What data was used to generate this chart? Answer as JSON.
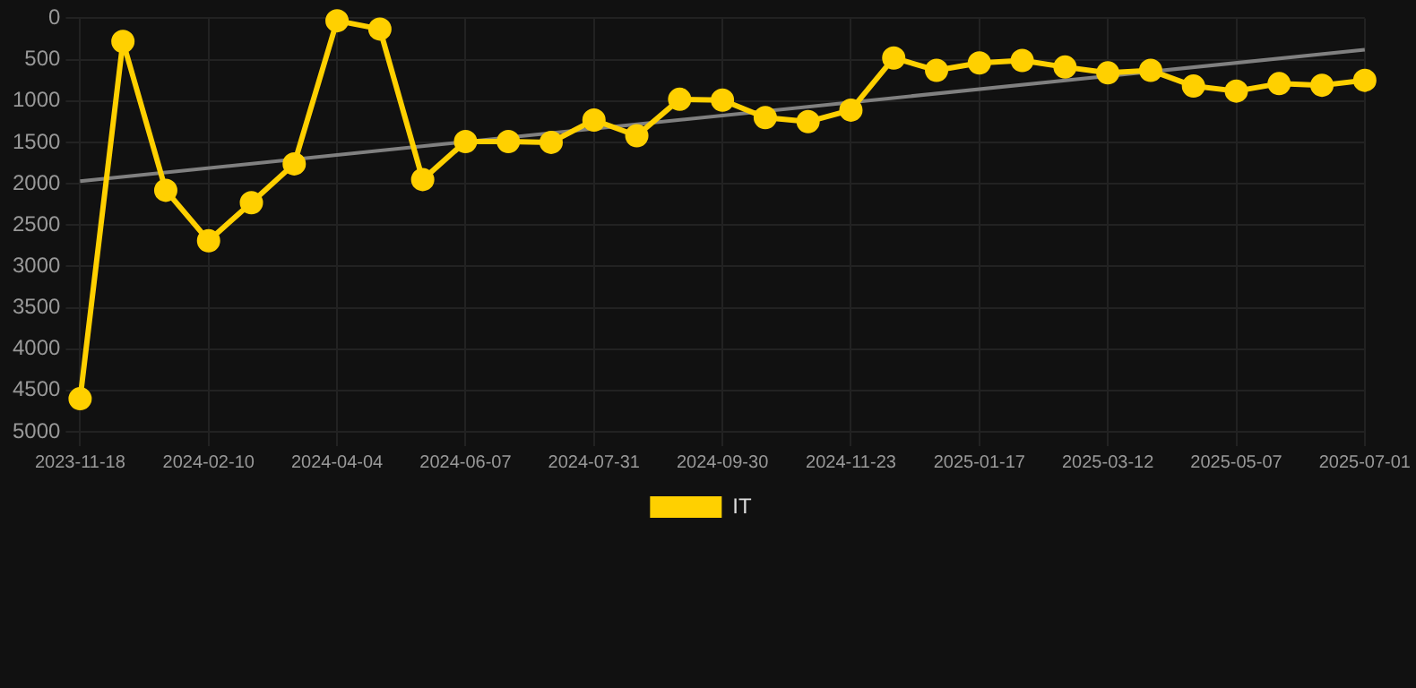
{
  "chart_data": {
    "type": "line",
    "categories": [
      "2023-11-18",
      null,
      null,
      "2024-02-10",
      null,
      null,
      "2024-04-04",
      null,
      null,
      "2024-06-07",
      null,
      null,
      "2024-07-31",
      null,
      null,
      "2024-09-30",
      null,
      null,
      "2024-11-23",
      null,
      null,
      "2025-01-17",
      null,
      null,
      "2025-03-12",
      null,
      null,
      "2025-05-07",
      null,
      null,
      "2025-07-01"
    ],
    "series": [
      {
        "name": "IT",
        "color": "#ffd000",
        "marker": "circle",
        "values": [
          4600,
          280,
          2080,
          2690,
          2230,
          1760,
          30,
          130,
          1950,
          1490,
          1490,
          1500,
          1230,
          1420,
          980,
          990,
          1200,
          1250,
          1110,
          480,
          630,
          540,
          510,
          590,
          660,
          630,
          820,
          880,
          790,
          810,
          750
        ]
      },
      {
        "color": "#808080",
        "marker": "none",
        "values": [
          1970,
          null,
          null,
          null,
          null,
          null,
          null,
          null,
          null,
          null,
          null,
          null,
          null,
          null,
          null,
          null,
          null,
          null,
          null,
          null,
          null,
          null,
          null,
          null,
          null,
          null,
          null,
          null,
          null,
          null,
          380
        ]
      }
    ],
    "ylim": [
      5000,
      0
    ],
    "yticks": [
      0,
      500,
      1000,
      1500,
      2000,
      2500,
      3000,
      3500,
      4000,
      4500,
      5000
    ],
    "grid": true,
    "legend": "bottom",
    "line_style": "solid"
  }
}
